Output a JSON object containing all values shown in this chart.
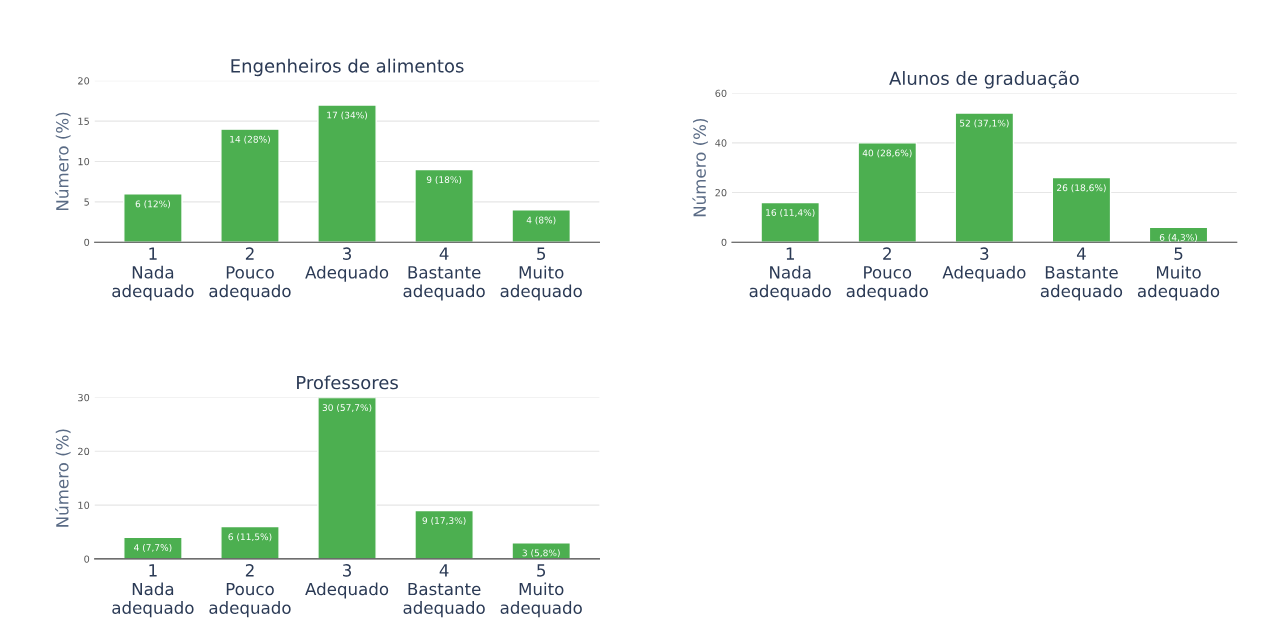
{
  "chart_data": [
    {
      "type": "bar",
      "title": "Engenheiros de alimentos",
      "ylabel": "Número (%)",
      "categories": [
        "1\nNada\nadequado",
        "2\nPouco\nadequado",
        "3\nAdequado",
        "4\nBastante\nadequado",
        "5\nMuito\nadequado"
      ],
      "values": [
        6,
        14,
        17,
        9,
        4
      ],
      "value_labels": [
        "6 (12%)",
        "14 (28%)",
        "17 (34%)",
        "9 (18%)",
        "4 (8%)"
      ],
      "color": "#4caf50",
      "ylim": [
        0,
        20
      ],
      "yticks": [
        0,
        5,
        10,
        15,
        20
      ],
      "grid": "y",
      "legend": false
    },
    {
      "type": "bar",
      "title": "Alunos de graduação",
      "ylabel": "Número (%)",
      "categories": [
        "1\nNada\nadequado",
        "2\nPouco\nadequado",
        "3\nAdequado",
        "4\nBastante\nadequado",
        "5\nMuito\nadequado"
      ],
      "values": [
        16,
        40,
        52,
        26,
        6
      ],
      "value_labels": [
        "16 (11,4%)",
        "40 (28,6%)",
        "52 (37,1%)",
        "26 (18,6%)",
        "6 (4,3%)"
      ],
      "color": "#4caf50",
      "ylim": [
        0,
        60
      ],
      "yticks": [
        0,
        20,
        40,
        60
      ],
      "grid": "y",
      "legend": false
    },
    {
      "type": "bar",
      "title": "Professores",
      "ylabel": "Número (%)",
      "categories": [
        "1\nNada\nadequado",
        "2\nPouco\nadequado",
        "3\nAdequado",
        "4\nBastante\nadequado",
        "5\nMuito\nadequado"
      ],
      "values": [
        4,
        6,
        30,
        9,
        3
      ],
      "value_labels": [
        "4 (7,7%)",
        "6 (11,5%)",
        "30 (57,7%)",
        "9 (17,3%)",
        "3 (5,8%)"
      ],
      "color": "#4caf50",
      "ylim": [
        0,
        30
      ],
      "yticks": [
        0,
        10,
        20,
        30
      ],
      "grid": "y",
      "legend": false
    }
  ]
}
